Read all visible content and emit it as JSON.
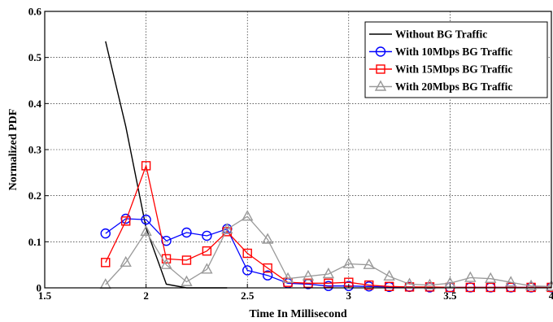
{
  "chart_data": {
    "type": "line",
    "title": "",
    "xlabel": "Time In Millisecond",
    "ylabel": "Normalized PDF",
    "xlim": [
      1.5,
      4
    ],
    "ylim": [
      0,
      0.6
    ],
    "xticks": [
      "1.5",
      "2",
      "2.5",
      "3",
      "3.5",
      "4"
    ],
    "yticks": [
      "0",
      "0.1",
      "0.2",
      "0.3",
      "0.4",
      "0.5",
      "0.6"
    ],
    "grid": true,
    "legend_position": "top-right",
    "series": [
      {
        "name": "Without BG Traffic",
        "color": "#000000",
        "marker": "none",
        "points": [
          [
            1.8,
            0.535
          ],
          [
            1.9,
            0.35
          ],
          [
            2.0,
            0.13
          ],
          [
            2.1,
            0.008
          ],
          [
            2.2,
            0.0
          ],
          [
            2.3,
            0.0
          ],
          [
            2.4,
            0.0
          ]
        ]
      },
      {
        "name": "With 10Mbps BG Traffic",
        "color": "#0000ff",
        "marker": "circle",
        "points": [
          [
            1.8,
            0.118
          ],
          [
            1.9,
            0.15
          ],
          [
            2.0,
            0.148
          ],
          [
            2.1,
            0.102
          ],
          [
            2.2,
            0.12
          ],
          [
            2.3,
            0.113
          ],
          [
            2.4,
            0.128
          ],
          [
            2.5,
            0.038
          ],
          [
            2.6,
            0.027
          ],
          [
            2.7,
            0.01
          ],
          [
            2.8,
            0.008
          ],
          [
            2.9,
            0.004
          ],
          [
            3.0,
            0.004
          ],
          [
            3.1,
            0.003
          ],
          [
            3.2,
            0.002
          ],
          [
            3.3,
            0.002
          ],
          [
            3.4,
            0.001
          ],
          [
            3.5,
            0.001
          ],
          [
            3.6,
            0.001
          ],
          [
            3.7,
            0.001
          ],
          [
            3.8,
            0.001
          ],
          [
            3.9,
            0.001
          ],
          [
            4.0,
            0.001
          ]
        ]
      },
      {
        "name": "With 15Mbps BG Traffic",
        "color": "#ff0000",
        "marker": "square",
        "points": [
          [
            1.8,
            0.055
          ],
          [
            1.9,
            0.145
          ],
          [
            2.0,
            0.265
          ],
          [
            2.1,
            0.063
          ],
          [
            2.2,
            0.06
          ],
          [
            2.3,
            0.08
          ],
          [
            2.4,
            0.122
          ],
          [
            2.5,
            0.075
          ],
          [
            2.6,
            0.043
          ],
          [
            2.7,
            0.012
          ],
          [
            2.8,
            0.01
          ],
          [
            2.9,
            0.01
          ],
          [
            3.0,
            0.012
          ],
          [
            3.1,
            0.006
          ],
          [
            3.2,
            0.003
          ],
          [
            3.3,
            0.002
          ],
          [
            3.4,
            0.002
          ],
          [
            3.5,
            0.001
          ],
          [
            3.6,
            0.001
          ],
          [
            3.7,
            0.001
          ],
          [
            3.8,
            0.001
          ],
          [
            3.9,
            0.001
          ],
          [
            4.0,
            0.001
          ]
        ]
      },
      {
        "name": "With 20Mbps BG Traffic",
        "color": "#999999",
        "marker": "triangle",
        "points": [
          [
            1.8,
            0.007
          ],
          [
            1.9,
            0.055
          ],
          [
            2.0,
            0.122
          ],
          [
            2.1,
            0.05
          ],
          [
            2.2,
            0.013
          ],
          [
            2.3,
            0.04
          ],
          [
            2.4,
            0.127
          ],
          [
            2.5,
            0.155
          ],
          [
            2.6,
            0.105
          ],
          [
            2.7,
            0.02
          ],
          [
            2.8,
            0.025
          ],
          [
            2.9,
            0.03
          ],
          [
            3.0,
            0.052
          ],
          [
            3.1,
            0.05
          ],
          [
            3.2,
            0.025
          ],
          [
            3.3,
            0.008
          ],
          [
            3.4,
            0.006
          ],
          [
            3.5,
            0.01
          ],
          [
            3.6,
            0.022
          ],
          [
            3.7,
            0.02
          ],
          [
            3.8,
            0.012
          ],
          [
            3.9,
            0.004
          ],
          [
            4.0,
            0.003
          ]
        ]
      }
    ]
  }
}
